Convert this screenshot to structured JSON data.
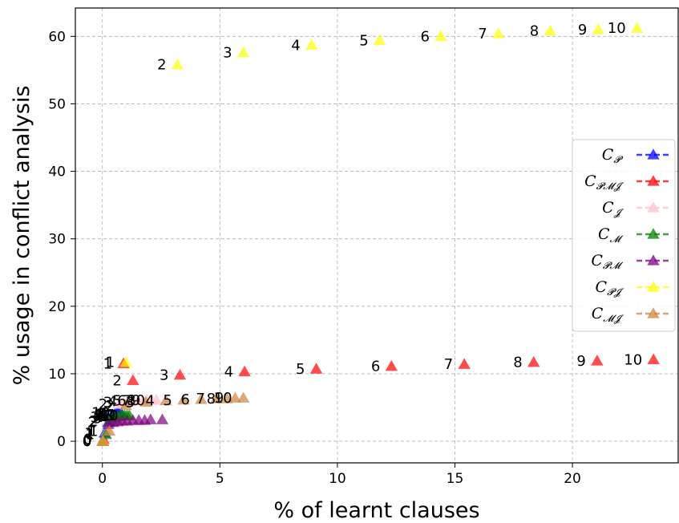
{
  "chart_data": {
    "type": "scatter",
    "xlabel": "% of learnt clauses",
    "ylabel": "% usage in conflict analysis",
    "xlim": [
      -1.15,
      24.5
    ],
    "ylim": [
      -3.2,
      64.2
    ],
    "xticks": [
      0,
      5,
      10,
      15,
      20
    ],
    "yticks": [
      0,
      10,
      20,
      30,
      40,
      50,
      60
    ],
    "grid": true,
    "legend_position": "center-right",
    "marker": "triangle",
    "series": [
      {
        "key": "P",
        "name_main": "C",
        "name_sub": "𝓟",
        "color": "#0000ff",
        "x": [
          0.02,
          0.1,
          0.25,
          0.35,
          0.45,
          0.5,
          0.55,
          0.6,
          0.65,
          0.7,
          0.8
        ],
        "y": [
          0,
          1.2,
          2.8,
          3.6,
          3.8,
          3.9,
          4.0,
          4.0,
          4.1,
          4.1,
          4.2
        ],
        "labels": [
          "0",
          "1",
          "2",
          "3",
          "4",
          "5",
          "6",
          "7",
          "8",
          "9",
          "10"
        ]
      },
      {
        "key": "PMJ",
        "name_main": "C",
        "name_sub": "𝓟𝓜𝓙",
        "color": "#ff0000",
        "x": [
          0.05,
          0.9,
          1.3,
          3.3,
          6.05,
          9.1,
          12.3,
          15.4,
          18.35,
          21.05,
          23.45
        ],
        "y": [
          0.3,
          11.5,
          9.0,
          9.8,
          10.3,
          10.7,
          11.1,
          11.4,
          11.7,
          11.9,
          12.1
        ],
        "labels": [
          "0",
          "1",
          "2",
          "3",
          "4",
          "5",
          "6",
          "7",
          "8",
          "9",
          "10"
        ]
      },
      {
        "key": "J",
        "name_main": "C",
        "name_sub": "𝓙",
        "color": "#ffc0cb",
        "x": [
          0.02,
          0.2,
          0.7,
          0.9,
          1.1,
          1.3,
          1.5,
          1.7,
          1.9,
          2.1,
          2.3
        ],
        "y": [
          0.1,
          1.5,
          5.5,
          5.8,
          5.9,
          6.0,
          6.0,
          6.0,
          6.1,
          6.1,
          6.1
        ],
        "labels": [
          "0",
          "1",
          "2",
          "3",
          "4",
          "5",
          "6",
          "7",
          "8",
          "9",
          "10"
        ]
      },
      {
        "key": "M",
        "name_main": "C",
        "name_sub": "𝓜",
        "color": "#008000",
        "x": [
          0.02,
          0.15,
          0.3,
          0.45,
          0.55,
          0.65,
          0.75,
          0.85,
          0.95,
          1.05,
          1.15
        ],
        "y": [
          0,
          1.0,
          3.0,
          3.4,
          3.6,
          3.7,
          3.7,
          3.8,
          3.8,
          3.8,
          3.8
        ],
        "labels": [
          "0",
          "1",
          "2",
          "3",
          "4",
          "5",
          "6",
          "7",
          "8",
          "9",
          "10"
        ]
      },
      {
        "key": "PM",
        "name_main": "C",
        "name_sub": "𝓟𝓜",
        "color": "#800080",
        "x": [
          0.02,
          0.25,
          0.45,
          0.65,
          0.85,
          1.05,
          1.3,
          1.55,
          1.8,
          2.05,
          2.55
        ],
        "y": [
          0,
          2.5,
          2.8,
          2.9,
          3.0,
          3.0,
          3.1,
          3.1,
          3.1,
          3.2,
          3.2
        ],
        "labels": [
          "",
          "",
          "",
          "",
          "",
          "",
          "",
          "",
          "",
          "",
          ""
        ]
      },
      {
        "key": "PJ",
        "name_main": "C",
        "name_sub": "𝓟𝓙",
        "color": "#ffff00",
        "x": [
          0.02,
          1.0,
          3.2,
          6.0,
          8.9,
          11.8,
          14.4,
          16.85,
          19.05,
          21.1,
          22.75
        ],
        "y": [
          0,
          11.7,
          55.8,
          57.6,
          58.7,
          59.4,
          60.0,
          60.4,
          60.8,
          61.0,
          61.2
        ],
        "labels": [
          "0",
          "1",
          "2",
          "3",
          "4",
          "5",
          "6",
          "7",
          "8",
          "9",
          "10"
        ]
      },
      {
        "key": "MJ",
        "name_main": "C",
        "name_sub": "𝓜𝓙",
        "color": "#cd853f",
        "x": [
          0.02,
          0.3,
          1.0,
          1.85,
          2.7,
          3.45,
          4.2,
          4.85,
          5.3,
          5.65,
          6.0
        ],
        "y": [
          0,
          1.5,
          5.3,
          5.8,
          6.0,
          6.1,
          6.2,
          6.3,
          6.3,
          6.4,
          6.4
        ],
        "labels": [
          "0",
          "1",
          "2",
          "3",
          "4",
          "5",
          "6",
          "7",
          "8",
          "9",
          "10"
        ]
      }
    ]
  }
}
